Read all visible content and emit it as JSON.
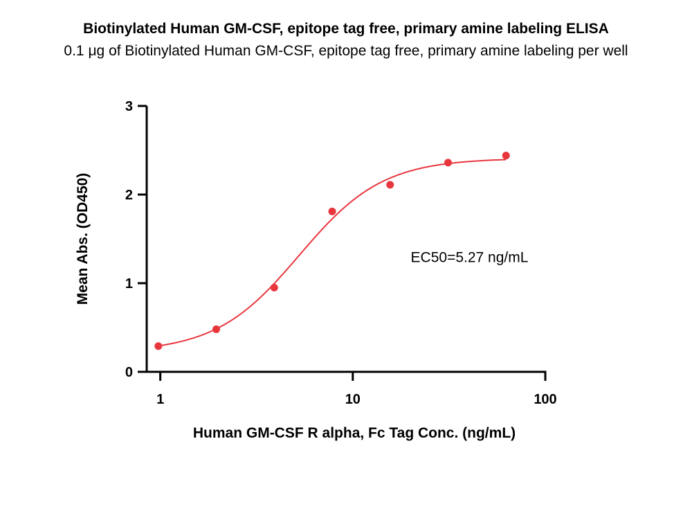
{
  "chart_data": {
    "type": "scatter",
    "title": "Biotinylated Human GM-CSF, epitope tag free, primary amine labeling ELISA",
    "subtitle": "0.1 μg of Biotinylated Human GM-CSF, epitope tag free, primary amine labeling per well",
    "xlabel": "Human GM-CSF R alpha, Fc Tag Conc. (ng/mL)",
    "ylabel": "Mean Abs. (OD450)",
    "x_scale": "log",
    "xlim": [
      0.85,
      100
    ],
    "ylim": [
      0,
      3
    ],
    "x_ticks": [
      1,
      10,
      100
    ],
    "x_tick_labels": [
      "1",
      "10",
      "100"
    ],
    "y_ticks": [
      0,
      1,
      2,
      3
    ],
    "y_tick_labels": [
      "0",
      "1",
      "2",
      "3"
    ],
    "grid": false,
    "legend": "none",
    "color": "#e8363d",
    "series": [
      {
        "points": [
          {
            "x": 0.977,
            "y": 0.29
          },
          {
            "x": 1.953,
            "y": 0.48
          },
          {
            "x": 3.906,
            "y": 0.95
          },
          {
            "x": 7.813,
            "y": 1.81
          },
          {
            "x": 15.625,
            "y": 2.11
          },
          {
            "x": 31.25,
            "y": 2.36
          },
          {
            "x": 62.5,
            "y": 2.44
          }
        ]
      }
    ],
    "fit": {
      "type": "4PL",
      "bottom": 0.22,
      "top": 2.41,
      "ec50": 5.27,
      "hill": 2.0
    },
    "annotations": [
      {
        "text": "EC50=5.27 ng/mL",
        "x": 20,
        "y": 1.24
      }
    ]
  }
}
